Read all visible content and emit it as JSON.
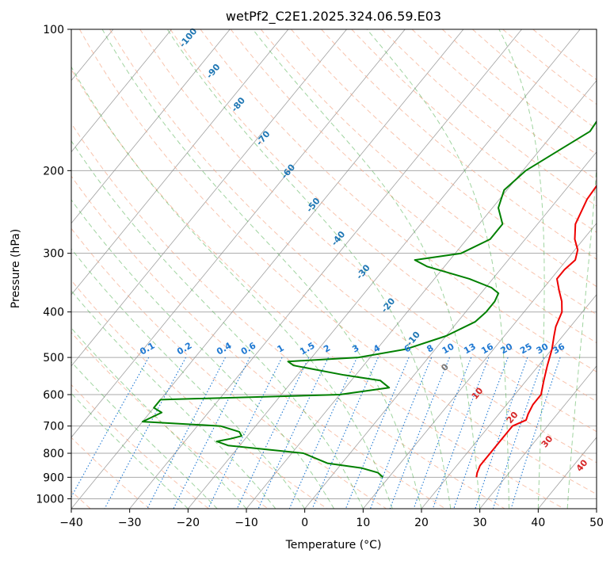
{
  "chart_data": {
    "type": "line",
    "subtype": "skew-t log-p",
    "title": "wetPf2_C2E1.2025.324.06.59.E03",
    "xlabel": "Temperature (°C)",
    "ylabel": "Pressure (hPa)",
    "xlim": [
      -40,
      50
    ],
    "ylim": [
      1050,
      100
    ],
    "y_scale": "log",
    "grid": true,
    "x_ticks": [
      "−40",
      "−30",
      "−20",
      "−10",
      "0",
      "10",
      "20",
      "30",
      "40",
      "50"
    ],
    "y_ticks": [
      {
        "p": 100,
        "label": "100"
      },
      {
        "p": 200,
        "label": "200"
      },
      {
        "p": 300,
        "label": "300"
      },
      {
        "p": 400,
        "label": "400"
      },
      {
        "p": 500,
        "label": "500"
      },
      {
        "p": 600,
        "label": "600"
      },
      {
        "p": 700,
        "label": "700"
      },
      {
        "p": 800,
        "label": "800"
      },
      {
        "p": 900,
        "label": "900"
      },
      {
        "p": 1000,
        "label": "1000"
      }
    ],
    "series": [
      {
        "role": "temperature",
        "color": "#ee0000",
        "points": [
          [
            100,
            2.0
          ],
          [
            110,
            3.5
          ],
          [
            125,
            4.5
          ],
          [
            135,
            3.0
          ],
          [
            150,
            1.0
          ],
          [
            165,
            1.5
          ],
          [
            180,
            3.0
          ],
          [
            200,
            4.5
          ],
          [
            230,
            5.0
          ],
          [
            260,
            6.5
          ],
          [
            280,
            8.5
          ],
          [
            295,
            10.5
          ],
          [
            310,
            11.5
          ],
          [
            325,
            11.0
          ],
          [
            340,
            11.0
          ],
          [
            360,
            13.0
          ],
          [
            380,
            15.0
          ],
          [
            400,
            16.5
          ],
          [
            430,
            17.5
          ],
          [
            450,
            18.5
          ],
          [
            480,
            20.0
          ],
          [
            520,
            21.5
          ],
          [
            560,
            23.0
          ],
          [
            600,
            24.5
          ],
          [
            630,
            24.5
          ],
          [
            660,
            25.0
          ],
          [
            680,
            25.5
          ],
          [
            700,
            24.0
          ],
          [
            750,
            24.0
          ],
          [
            800,
            24.0
          ],
          [
            850,
            24.0
          ],
          [
            880,
            24.5
          ],
          [
            900,
            25.0
          ]
        ]
      },
      {
        "role": "dewpoint",
        "color": "#008000",
        "points": [
          [
            100,
            -1.5
          ],
          [
            110,
            -2.0
          ],
          [
            115,
            -3.5
          ],
          [
            125,
            -5.0
          ],
          [
            135,
            -5.5
          ],
          [
            150,
            -4.5
          ],
          [
            165,
            -4.0
          ],
          [
            180,
            -6.5
          ],
          [
            200,
            -9.5
          ],
          [
            220,
            -10.5
          ],
          [
            240,
            -9.0
          ],
          [
            260,
            -6.0
          ],
          [
            280,
            -6.0
          ],
          [
            300,
            -9.0
          ],
          [
            310,
            -16.0
          ],
          [
            320,
            -13.0
          ],
          [
            340,
            -4.0
          ],
          [
            355,
            1.0
          ],
          [
            365,
            3.0
          ],
          [
            380,
            3.5
          ],
          [
            400,
            3.5
          ],
          [
            420,
            3.0
          ],
          [
            450,
            0.0
          ],
          [
            480,
            -5.0
          ],
          [
            500,
            -12.0
          ],
          [
            510,
            -23.5
          ],
          [
            520,
            -22.0
          ],
          [
            545,
            -12.0
          ],
          [
            560,
            -5.0
          ],
          [
            580,
            -2.5
          ],
          [
            600,
            -10.0
          ],
          [
            615,
            -40.0
          ],
          [
            640,
            -40.0
          ],
          [
            655,
            -38.0
          ],
          [
            685,
            -40.0
          ],
          [
            700,
            -26.0
          ],
          [
            720,
            -22.0
          ],
          [
            735,
            -21.0
          ],
          [
            745,
            -22.5
          ],
          [
            755,
            -24.5
          ],
          [
            770,
            -22.0
          ],
          [
            800,
            -8.0
          ],
          [
            840,
            -2.5
          ],
          [
            860,
            4.0
          ],
          [
            880,
            7.5
          ],
          [
            900,
            9.0
          ]
        ]
      }
    ],
    "dry_adiabat_labels": [
      "-100",
      "-90",
      "-80",
      "-70",
      "-60",
      "-50",
      "-40",
      "-30",
      "-20",
      "-10",
      "0",
      "10",
      "20",
      "30",
      "40"
    ],
    "mixing_ratio_labels": [
      "0.1",
      "0.2",
      "0.4",
      "0.6",
      "1",
      "1.5",
      "2",
      "3",
      "4",
      "6",
      "8",
      "10",
      "13",
      "16",
      "20",
      "25",
      "30",
      "36"
    ],
    "colors": {
      "dry_adiabat": "#f4a582",
      "moist_adiabat": "#2ca02c",
      "mixing_ratio": "#1e78d2",
      "isotherm": "#888888",
      "isobar": "#aaaaaa",
      "label_blue": "#1f77b4",
      "label_red": "#d62728",
      "label_grey": "#777777"
    }
  }
}
